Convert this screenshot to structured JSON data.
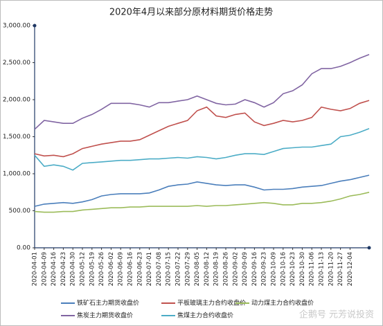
{
  "chart_data": {
    "type": "line",
    "title": "2020年4月以来部分原材料期货价格走势",
    "categories": [
      "2020-04-01",
      "2020-04-09",
      "2020-04-16",
      "2020-04-23",
      "2020-04-30",
      "2020-05-12",
      "2020-05-19",
      "2020-05-26",
      "2020-06-02",
      "2020-06-09",
      "2020-06-16",
      "2020-06-23",
      "2020-07-01",
      "2020-07-08",
      "2020-07-15",
      "2020-07-22",
      "2020-07-29",
      "2020-08-05",
      "2020-08-12",
      "2020-08-19",
      "2020-08-26",
      "2020-09-02",
      "2020-09-09",
      "2020-09-16",
      "2020-09-23",
      "2020-10-09",
      "2020-10-16",
      "2020-10-23",
      "2020-10-30",
      "2020-11-06",
      "2020-11-13",
      "2020-11-20",
      "2020-11-27",
      "2020-12-04",
      null,
      null
    ],
    "series": [
      {
        "name": "铁矿石主力期货收盘价",
        "color": "#4a7ebb",
        "values": [
          560,
          590,
          600,
          610,
          600,
          620,
          650,
          700,
          720,
          730,
          730,
          730,
          740,
          780,
          830,
          850,
          860,
          890,
          870,
          850,
          840,
          850,
          850,
          820,
          780,
          790,
          790,
          800,
          820,
          830,
          840,
          870,
          900,
          920,
          950,
          980
        ]
      },
      {
        "name": "平板玻璃主力合约收盘价",
        "color": "#c0504d",
        "values": [
          1270,
          1240,
          1250,
          1230,
          1270,
          1340,
          1370,
          1400,
          1420,
          1440,
          1440,
          1460,
          1520,
          1580,
          1640,
          1680,
          1720,
          1850,
          1900,
          1780,
          1760,
          1800,
          1820,
          1700,
          1650,
          1680,
          1720,
          1700,
          1720,
          1760,
          1900,
          1870,
          1850,
          1880,
          1950,
          1990
        ]
      },
      {
        "name": "动力煤主力合约收盘价",
        "color": "#9bbb59",
        "values": [
          490,
          480,
          480,
          490,
          490,
          510,
          520,
          530,
          540,
          540,
          550,
          550,
          560,
          560,
          560,
          560,
          560,
          570,
          560,
          570,
          570,
          580,
          590,
          600,
          610,
          600,
          580,
          580,
          600,
          600,
          610,
          630,
          660,
          700,
          720,
          750
        ]
      },
      {
        "name": "焦炭主力期货收盘价",
        "color": "#8064a2",
        "values": [
          1600,
          1720,
          1700,
          1680,
          1680,
          1750,
          1800,
          1870,
          1950,
          1950,
          1950,
          1930,
          1900,
          1960,
          1960,
          1980,
          2000,
          2050,
          2000,
          1950,
          1930,
          1940,
          2000,
          1960,
          1900,
          1960,
          2080,
          2120,
          2200,
          2350,
          2420,
          2420,
          2450,
          2500,
          2560,
          2610
        ]
      },
      {
        "name": "焦煤主力合约收盘价",
        "color": "#4bacc6",
        "values": [
          1250,
          1100,
          1120,
          1100,
          1050,
          1140,
          1150,
          1160,
          1170,
          1180,
          1180,
          1190,
          1200,
          1200,
          1210,
          1220,
          1210,
          1230,
          1220,
          1200,
          1220,
          1250,
          1270,
          1270,
          1260,
          1300,
          1340,
          1350,
          1360,
          1360,
          1380,
          1400,
          1500,
          1520,
          1560,
          1610
        ]
      }
    ],
    "ylim": [
      0,
      3000
    ],
    "yticks": [
      {
        "value": 0,
        "label": "0.00"
      },
      {
        "value": 500,
        "label": "500.00"
      },
      {
        "value": 1000,
        "label": "1,000.00"
      },
      {
        "value": 1500,
        "label": "1,500.00"
      },
      {
        "value": 2000,
        "label": "2,000.00"
      },
      {
        "value": 2500,
        "label": "2,500.00"
      },
      {
        "value": 3000,
        "label": "3,000.00"
      }
    ],
    "grid": false,
    "legend": "bottom",
    "watermark": "企鹅号 元芳说投资"
  }
}
